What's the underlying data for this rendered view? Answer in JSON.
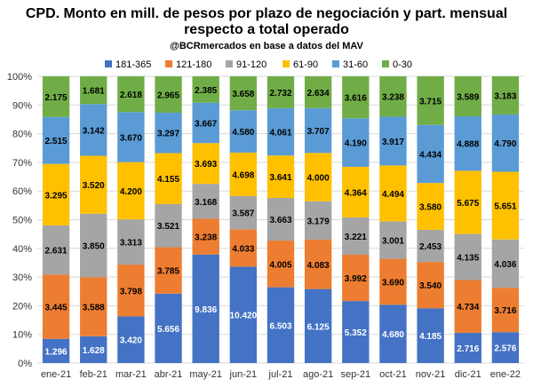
{
  "chart_data": {
    "type": "bar",
    "stacked": true,
    "percent": true,
    "title_line1": "CPD. Monto en mill. de pesos por plazo de negociación y part. mensual",
    "title_line2": "respecto a total operado",
    "subtitle": "@BCRmercados en base a datos del MAV",
    "categories": [
      "ene-21",
      "feb-21",
      "mar-21",
      "abr-21",
      "may-21",
      "jun-21",
      "jul-21",
      "ago-21",
      "sep-21",
      "oct-21",
      "nov-21",
      "dic-21",
      "ene-22"
    ],
    "y_ticks": [
      "0%",
      "10%",
      "20%",
      "30%",
      "40%",
      "50%",
      "60%",
      "70%",
      "80%",
      "90%",
      "100%"
    ],
    "ylim": [
      0,
      100
    ],
    "grid": true,
    "legend_position": "top",
    "series": [
      {
        "name": "181-365",
        "color": "#4472C4",
        "label_color": "#ffffff",
        "labels": [
          "1.296",
          "1.628",
          "3.420",
          "5.656",
          "9.836",
          "10.420",
          "6.503",
          "6.125",
          "5.352",
          "4.680",
          "4.185",
          "2.716",
          "2.576"
        ]
      },
      {
        "name": "121-180",
        "color": "#ED7D31",
        "label_color": "#000000",
        "labels": [
          "3.445",
          "3.588",
          "3.798",
          "3.785",
          "3.238",
          "4.033",
          "4.005",
          "4.083",
          "3.992",
          "3.690",
          "3.540",
          "4.734",
          "3.716"
        ]
      },
      {
        "name": "91-120",
        "color": "#A5A5A5",
        "label_color": "#000000",
        "labels": [
          "2.631",
          "3.850",
          "3.313",
          "3.521",
          "3.168",
          "3.587",
          "3.663",
          "3.179",
          "3.221",
          "3.001",
          "2.453",
          "4.135",
          "4.036"
        ]
      },
      {
        "name": "61-90",
        "color": "#FFC000",
        "label_color": "#000000",
        "labels": [
          "3.295",
          "3.520",
          "4.200",
          "4.155",
          "3.693",
          "4.698",
          "3.641",
          "4.000",
          "4.364",
          "4.494",
          "3.580",
          "5.675",
          "5.651"
        ]
      },
      {
        "name": "31-60",
        "color": "#5B9BD5",
        "label_color": "#000000",
        "labels": [
          "2.515",
          "3.142",
          "3.670",
          "3.297",
          "3.667",
          "4.580",
          "4.061",
          "3.707",
          "4.190",
          "3.917",
          "4.434",
          "4.888",
          "4.790"
        ]
      },
      {
        "name": "0-30",
        "color": "#70AD47",
        "label_color": "#000000",
        "labels": [
          "2.175",
          "1.681",
          "2.618",
          "2.965",
          "2.385",
          "3.658",
          "2.732",
          "2.634",
          "3.616",
          "3.238",
          "3.715",
          "3.589",
          "3.183"
        ]
      }
    ]
  }
}
